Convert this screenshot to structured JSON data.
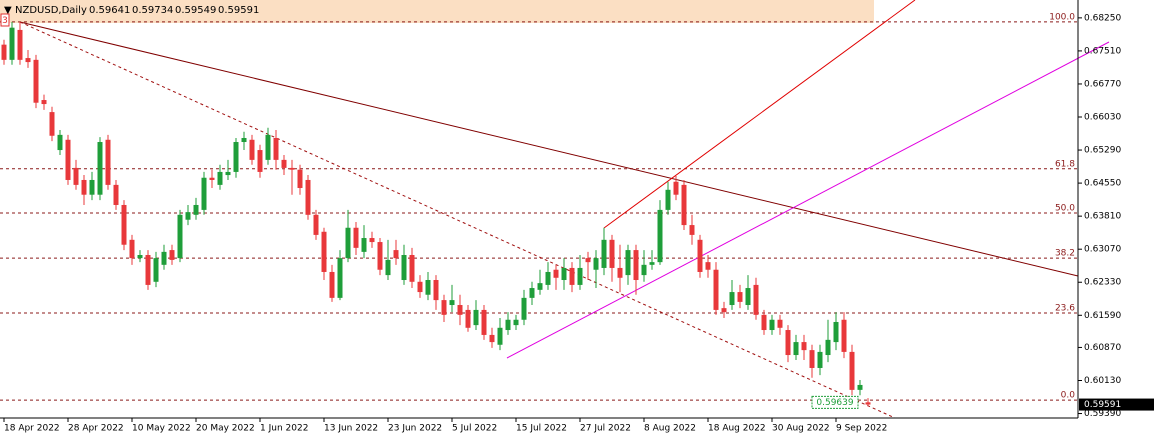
{
  "chart_data": {
    "type": "candlestick",
    "title": "NZDUSD,Daily",
    "badge": "3",
    "categories": [
      "18 Apr 2022",
      null,
      null,
      null,
      null,
      null,
      null,
      null,
      "28 Apr 2022",
      null,
      null,
      null,
      null,
      null,
      null,
      null,
      "10 May 2022",
      null,
      null,
      null,
      null,
      null,
      null,
      null,
      "20 May 2022",
      null,
      null,
      null,
      null,
      null,
      null,
      null,
      "1 Jun 2022",
      null,
      null,
      null,
      null,
      null,
      null,
      null,
      "13 Jun 2022",
      null,
      null,
      null,
      null,
      null,
      null,
      null,
      "23 Jun 2022",
      null,
      null,
      null,
      null,
      null,
      null,
      null,
      "5 Jul 2022",
      null,
      null,
      null,
      null,
      null,
      null,
      null,
      "15 Jul 2022",
      null,
      null,
      null,
      null,
      null,
      null,
      null,
      "27 Jul 2022",
      null,
      null,
      null,
      null,
      null,
      null,
      null,
      "8 Aug 2022",
      null,
      null,
      null,
      null,
      null,
      null,
      null,
      "18 Aug 2022",
      null,
      null,
      null,
      null,
      null,
      null,
      null,
      "30 Aug 2022",
      null,
      null,
      null,
      null,
      null,
      null,
      null,
      "9 Sep 2022",
      null,
      null,
      null,
      null
    ],
    "open": [
      0.6765,
      0.6731,
      0.6798,
      0.6735,
      0.6731,
      0.6641,
      0.6614,
      0.6529,
      0.6552,
      0.6489,
      0.6462,
      0.6429,
      0.6429,
      0.6552,
      0.6451,
      0.6406,
      0.6328,
      0.6287,
      0.6294,
      0.6234,
      0.6272,
      0.6305,
      0.6287,
      0.6373,
      0.6384,
      0.6395,
      0.6467,
      0.6451,
      0.6473,
      0.648,
      0.6547,
      0.6552,
      0.6529,
      0.6507,
      0.6556,
      0.6507,
      0.6489,
      0.6485,
      0.6462,
      0.6384,
      0.6346,
      0.6256,
      0.6198,
      0.6287,
      0.6355,
      0.6301,
      0.6332,
      0.6323,
      0.6249,
      0.6305,
      0.6238,
      0.6294,
      0.6234,
      0.6205,
      0.6238,
      0.6193,
      0.6182,
      0.6182,
      0.6171,
      0.6137,
      0.6171,
      0.6115,
      0.6093,
      0.6126,
      0.6137,
      0.6149,
      0.6198,
      0.6216,
      0.6227,
      0.6261,
      0.6238,
      0.6265,
      0.6227,
      0.6287,
      0.6261,
      0.6265,
      0.6328,
      0.6265,
      0.6249,
      0.6305,
      0.6249,
      0.6272,
      0.6278,
      0.6395,
      0.6458,
      0.6451,
      0.6361,
      0.6328,
      0.6278,
      0.6261,
      0.6175,
      0.6182,
      0.6211,
      0.6182,
      0.6227,
      0.616,
      0.6126,
      0.6149,
      0.6126,
      0.607,
      0.6099,
      0.6081,
      0.6041,
      0.607,
      0.6099,
      0.6149,
      0.6077,
      0.5992,
      0.59641
    ],
    "high": [
      0.6776,
      0.6816,
      0.6816,
      0.6753,
      0.6742,
      0.6653,
      0.6626,
      0.6574,
      0.6563,
      0.6507,
      0.6473,
      0.648,
      0.6558,
      0.6563,
      0.6462,
      0.6417,
      0.6339,
      0.6305,
      0.6305,
      0.6301,
      0.6317,
      0.6317,
      0.6395,
      0.6406,
      0.6422,
      0.648,
      0.6485,
      0.6496,
      0.6507,
      0.6556,
      0.657,
      0.6563,
      0.6541,
      0.6579,
      0.6574,
      0.6518,
      0.6507,
      0.6496,
      0.6473,
      0.6395,
      0.6355,
      0.6272,
      0.6305,
      0.6395,
      0.6368,
      0.6361,
      0.6346,
      0.6332,
      0.6328,
      0.6328,
      0.6317,
      0.631,
      0.6249,
      0.6256,
      0.6249,
      0.6205,
      0.6227,
      0.6205,
      0.6182,
      0.6193,
      0.6182,
      0.6131,
      0.6153,
      0.6166,
      0.616,
      0.6216,
      0.6234,
      0.6261,
      0.6278,
      0.6272,
      0.6287,
      0.6278,
      0.6294,
      0.6301,
      0.6305,
      0.6355,
      0.6339,
      0.6317,
      0.6317,
      0.6317,
      0.6305,
      0.6305,
      0.6417,
      0.6458,
      0.6471,
      0.6462,
      0.6384,
      0.6339,
      0.6294,
      0.6278,
      0.6189,
      0.6238,
      0.6227,
      0.6249,
      0.6243,
      0.6171,
      0.616,
      0.616,
      0.6137,
      0.6115,
      0.6115,
      0.6093,
      0.6093,
      0.6149,
      0.6166,
      0.6166,
      0.6093,
      0.6014,
      0.59734
    ],
    "low": [
      0.672,
      0.672,
      0.672,
      0.6713,
      0.6623,
      0.6619,
      0.6549,
      0.6518,
      0.6451,
      0.644,
      0.6406,
      0.6417,
      0.6417,
      0.644,
      0.6395,
      0.6305,
      0.6272,
      0.6278,
      0.6216,
      0.6222,
      0.6261,
      0.6272,
      0.6278,
      0.6361,
      0.6373,
      0.6384,
      0.6444,
      0.644,
      0.6462,
      0.6467,
      0.6529,
      0.6496,
      0.6467,
      0.6496,
      0.6485,
      0.6473,
      0.6429,
      0.6429,
      0.6373,
      0.6328,
      0.6238,
      0.6189,
      0.6193,
      0.6278,
      0.6294,
      0.6287,
      0.631,
      0.6249,
      0.6238,
      0.6272,
      0.6227,
      0.622,
      0.6198,
      0.6193,
      0.6171,
      0.6144,
      0.6166,
      0.6137,
      0.6122,
      0.6126,
      0.6104,
      0.6086,
      0.6081,
      0.6115,
      0.6126,
      0.6137,
      0.6182,
      0.6205,
      0.6216,
      0.6216,
      0.6216,
      0.6211,
      0.6216,
      0.6238,
      0.622,
      0.6249,
      0.6234,
      0.6211,
      0.6227,
      0.6205,
      0.6234,
      0.6261,
      0.6272,
      0.6384,
      0.6417,
      0.635,
      0.6317,
      0.6243,
      0.6243,
      0.616,
      0.6153,
      0.6171,
      0.6175,
      0.6171,
      0.6149,
      0.6115,
      0.6115,
      0.6115,
      0.6054,
      0.6059,
      0.6059,
      0.6019,
      0.6025,
      0.6054,
      0.6081,
      0.6063,
      0.598,
      0.598,
      0.59549
    ],
    "close": [
      0.6731,
      0.6803,
      0.6731,
      0.6726,
      0.6635,
      0.6632,
      0.6561,
      0.6563,
      0.6462,
      0.6451,
      0.6429,
      0.6462,
      0.6547,
      0.6451,
      0.6406,
      0.6317,
      0.6287,
      0.6294,
      0.6227,
      0.6287,
      0.6301,
      0.6283,
      0.6384,
      0.639,
      0.6406,
      0.6467,
      0.6462,
      0.648,
      0.648,
      0.6547,
      0.6556,
      0.6507,
      0.648,
      0.6563,
      0.6507,
      0.6489,
      0.6485,
      0.6444,
      0.6384,
      0.6339,
      0.6256,
      0.6198,
      0.6287,
      0.6355,
      0.631,
      0.6332,
      0.6323,
      0.6261,
      0.6283,
      0.6287,
      0.6294,
      0.6234,
      0.6211,
      0.6238,
      0.6193,
      0.616,
      0.6193,
      0.616,
      0.6131,
      0.6171,
      0.6115,
      0.6099,
      0.6131,
      0.6149,
      0.6149,
      0.6198,
      0.622,
      0.6231,
      0.6256,
      0.6243,
      0.6265,
      0.6227,
      0.6265,
      0.6278,
      0.6287,
      0.6328,
      0.6265,
      0.6243,
      0.6305,
      0.6238,
      0.6272,
      0.6278,
      0.6395,
      0.644,
      0.6429,
      0.6361,
      0.6339,
      0.6256,
      0.6261,
      0.6171,
      0.6166,
      0.6211,
      0.6189,
      0.622,
      0.616,
      0.6126,
      0.6149,
      0.6131,
      0.607,
      0.6099,
      0.6081,
      0.6041,
      0.6077,
      0.6104,
      0.6144,
      0.6077,
      0.5992,
      0.6003,
      0.59591
    ],
    "up_color": "#1f9e3a",
    "down_color": "#e8383b",
    "ylim": [
      0.5929,
      0.6865
    ],
    "yticks": [
      {
        "value": 0.6825,
        "label": "0.68250"
      },
      {
        "value": 0.6751,
        "label": "0.67510"
      },
      {
        "value": 0.6677,
        "label": "0.66770"
      },
      {
        "value": 0.6603,
        "label": "0.66030"
      },
      {
        "value": 0.6529,
        "label": "0.65290"
      },
      {
        "value": 0.6455,
        "label": "0.64550"
      },
      {
        "value": 0.6381,
        "label": "0.63810"
      },
      {
        "value": 0.6307,
        "label": "0.63070"
      },
      {
        "value": 0.6233,
        "label": "0.62330"
      },
      {
        "value": 0.6159,
        "label": "0.61590"
      },
      {
        "value": 0.6087,
        "label": "0.60870"
      },
      {
        "value": 0.6013,
        "label": "0.60130"
      },
      {
        "value": 0.5939,
        "label": "0.59390"
      }
    ],
    "fib_levels": [
      {
        "level": {
          "value": 100,
          "label": "100.0"
        },
        "price": 0.6816
      },
      {
        "level": {
          "value": 61.8,
          "label": "61.8"
        },
        "price": 0.6487
      },
      {
        "level": {
          "value": 50,
          "label": "50.0"
        },
        "price": 0.6388
      },
      {
        "level": {
          "value": 38.2,
          "label": "38.2"
        },
        "price": 0.6287
      },
      {
        "level": {
          "value": 23.6,
          "label": "23.6"
        },
        "price": 0.6164
      },
      {
        "level": {
          "value": 0,
          "label": "0.0"
        },
        "price": 0.5969
      }
    ],
    "price_marker": 0.59639
  }
}
